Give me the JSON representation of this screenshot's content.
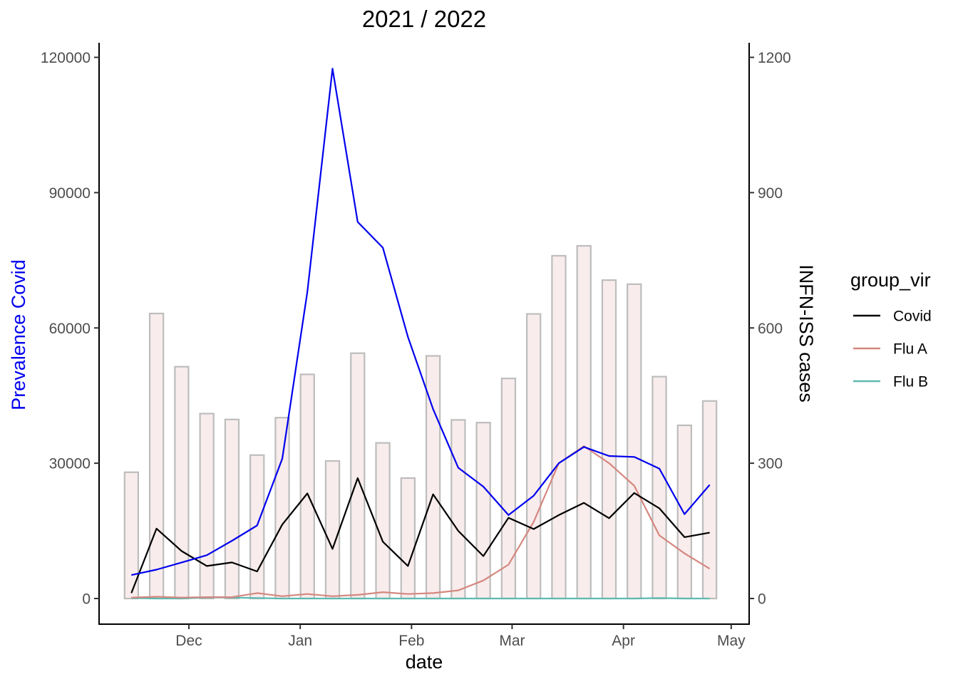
{
  "chart_data": {
    "type": "line",
    "title": "2021 / 2022",
    "xlabel": "date",
    "ylabel_left": "Prevalence Covid",
    "ylabel_right": "INFN-ISS cases",
    "ylim_left": [
      0,
      120000
    ],
    "ylim_right": [
      0,
      1200
    ],
    "yticks_left": [
      0,
      30000,
      60000,
      90000,
      120000
    ],
    "yticks_right": [
      0,
      300,
      600,
      900,
      1200
    ],
    "xlim": [
      "2021-11-06",
      "2022-05-06"
    ],
    "xticks": [
      {
        "date": "2021-12-01",
        "label": "Dec"
      },
      {
        "date": "2022-01-01",
        "label": "Jan"
      },
      {
        "date": "2022-02-01",
        "label": "Feb"
      },
      {
        "date": "2022-03-01",
        "label": "Mar"
      },
      {
        "date": "2022-04-01",
        "label": "Apr"
      },
      {
        "date": "2022-05-01",
        "label": "May"
      }
    ],
    "colors": {
      "prevalence": "#0000ee",
      "covid": "#000000",
      "flu_a": "#d4877f",
      "flu_b": "#5cbab0",
      "bar_fill": "#f9ecec",
      "bar_stroke": "#bdbdbd"
    },
    "dates": [
      "2021-11-15",
      "2021-11-22",
      "2021-11-29",
      "2021-12-06",
      "2021-12-13",
      "2021-12-20",
      "2021-12-27",
      "2022-01-03",
      "2022-01-10",
      "2022-01-17",
      "2022-01-24",
      "2022-01-31",
      "2022-02-07",
      "2022-02-14",
      "2022-02-21",
      "2022-02-28",
      "2022-03-07",
      "2022-03-14",
      "2022-03-21",
      "2022-03-28",
      "2022-04-04",
      "2022-04-11",
      "2022-04-18",
      "2022-04-25"
    ],
    "bars_right": [
      280,
      632,
      514,
      410,
      397,
      318,
      401,
      497,
      305,
      544,
      345,
      267,
      538,
      396,
      390,
      488,
      631,
      760,
      782,
      706,
      697,
      492,
      384,
      438
    ],
    "prevalence_left": [
      5200,
      6400,
      8000,
      9600,
      12800,
      16200,
      31000,
      68000,
      117500,
      83500,
      77800,
      58000,
      42000,
      29000,
      24800,
      18500,
      22800,
      30000,
      33600,
      31600,
      31400,
      28800,
      18700,
      25200
    ],
    "legend_title": "group_vir",
    "series": [
      {
        "name": "Covid",
        "axis": "right",
        "values": [
          12,
          155,
          105,
          72,
          80,
          60,
          164,
          233,
          110,
          267,
          126,
          72,
          231,
          150,
          94,
          179,
          154,
          185,
          212,
          178,
          234,
          200,
          136,
          146
        ]
      },
      {
        "name": "Flu A",
        "axis": "right",
        "values": [
          2,
          4,
          2,
          3,
          3,
          12,
          5,
          10,
          5,
          8,
          14,
          10,
          12,
          18,
          40,
          75,
          170,
          300,
          338,
          300,
          250,
          140,
          100,
          66
        ]
      },
      {
        "name": "Flu B",
        "axis": "right",
        "values": [
          1,
          0,
          0,
          2,
          2,
          1,
          0,
          0,
          0,
          0,
          0,
          0,
          0,
          0,
          0,
          0,
          0,
          0,
          0,
          0,
          0,
          1,
          0,
          0
        ]
      }
    ]
  }
}
